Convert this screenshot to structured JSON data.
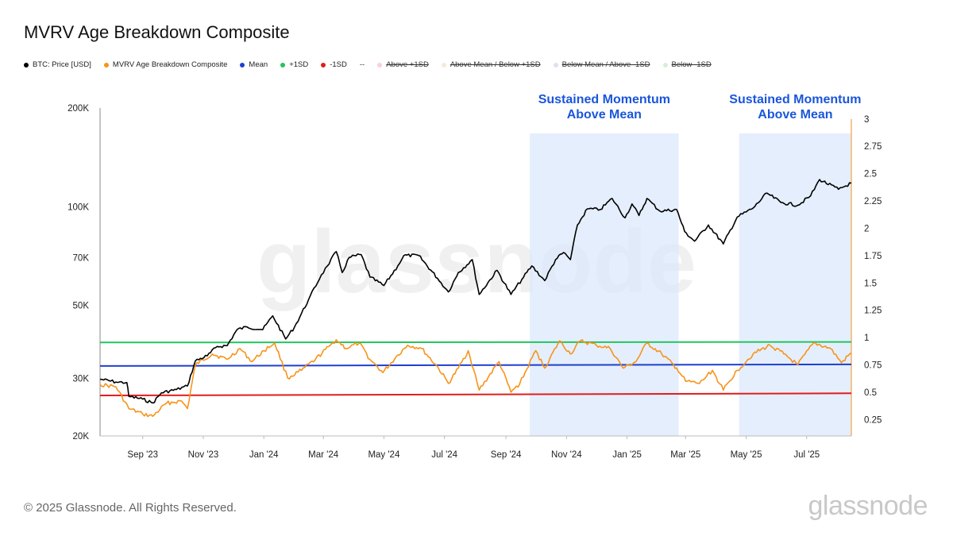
{
  "page": {
    "title": "MVRV Age Breakdown Composite",
    "footer": "© 2025 Glassnode. All Rights Reserved.",
    "brand": "glassnode",
    "watermark": "glassnode"
  },
  "legend": [
    {
      "label": "BTC: Price [USD]",
      "color": "#000000",
      "style": "dot"
    },
    {
      "label": "MVRV Age Breakdown Composite",
      "color": "#f7931a",
      "style": "dot"
    },
    {
      "label": "Mean",
      "color": "#1f3fcf",
      "style": "dot"
    },
    {
      "label": "+1SD",
      "color": "#22c55e",
      "style": "dot"
    },
    {
      "label": "-1SD",
      "color": "#e11d1d",
      "style": "dot"
    },
    {
      "label": "--",
      "color": "#333333",
      "style": "text"
    },
    {
      "label": "Above +1SD",
      "color": "#f9d0d8",
      "style": "struck"
    },
    {
      "label": "Above Mean / Below +1SD",
      "color": "#f3eadc",
      "style": "struck"
    },
    {
      "label": "Below Mean / Above -1SD",
      "color": "#dde3ec",
      "style": "struck"
    },
    {
      "label": "Below -1SD",
      "color": "#d3f0d8",
      "style": "struck"
    }
  ],
  "chart_data": {
    "type": "line",
    "x_range": [
      "2023-07-20",
      "2025-08-15"
    ],
    "x_ticks": [
      {
        "date": "2023-09-01",
        "label": "Sep '23"
      },
      {
        "date": "2023-11-01",
        "label": "Nov '23"
      },
      {
        "date": "2024-01-01",
        "label": "Jan '24"
      },
      {
        "date": "2024-03-01",
        "label": "Mar '24"
      },
      {
        "date": "2024-05-01",
        "label": "May '24"
      },
      {
        "date": "2024-07-01",
        "label": "Jul '24"
      },
      {
        "date": "2024-09-01",
        "label": "Sep '24"
      },
      {
        "date": "2024-11-01",
        "label": "Nov '24"
      },
      {
        "date": "2025-01-01",
        "label": "Jan '25"
      },
      {
        "date": "2025-03-01",
        "label": "Mar '25"
      },
      {
        "date": "2025-05-01",
        "label": "May '25"
      },
      {
        "date": "2025-07-01",
        "label": "Jul '25"
      }
    ],
    "y_left": {
      "scale": "log",
      "range": [
        20000,
        200000
      ],
      "ticks": [
        {
          "value": 20000,
          "label": "20K"
        },
        {
          "value": 30000,
          "label": "30K"
        },
        {
          "value": 50000,
          "label": "50K"
        },
        {
          "value": 70000,
          "label": "70K"
        },
        {
          "value": 100000,
          "label": "100K"
        },
        {
          "value": 200000,
          "label": "200K"
        }
      ]
    },
    "y_right": {
      "scale": "linear",
      "range": [
        0.1,
        3.1
      ],
      "ticks": [
        {
          "value": 0.25,
          "label": "0.25"
        },
        {
          "value": 0.5,
          "label": "0.5"
        },
        {
          "value": 0.75,
          "label": "0.75"
        },
        {
          "value": 1,
          "label": "1"
        },
        {
          "value": 1.25,
          "label": "1.25"
        },
        {
          "value": 1.5,
          "label": "1.5"
        },
        {
          "value": 1.75,
          "label": "1.75"
        },
        {
          "value": 2,
          "label": "2"
        },
        {
          "value": 2.25,
          "label": "2.25"
        },
        {
          "value": 2.5,
          "label": "2.5"
        },
        {
          "value": 2.75,
          "label": "2.75"
        },
        {
          "value": 3,
          "label": "3"
        }
      ]
    },
    "shaded_regions": [
      {
        "start": "2024-09-25",
        "end": "2025-02-22",
        "label_line1": "Sustained Momentum",
        "label_line2": "Above Mean",
        "color": "#dce8fb"
      },
      {
        "start": "2025-04-24",
        "end": "2025-08-15",
        "label_line1": "Sustained Momentum",
        "label_line2": "Above Mean",
        "color": "#dce8fb"
      }
    ],
    "series": [
      {
        "name": "BTC: Price [USD]",
        "axis": "left",
        "color": "#000000",
        "points": [
          [
            "2023-07-20",
            29800
          ],
          [
            "2023-08-05",
            29200
          ],
          [
            "2023-08-16",
            29100
          ],
          [
            "2023-08-18",
            26400
          ],
          [
            "2023-09-01",
            25900
          ],
          [
            "2023-09-11",
            25200
          ],
          [
            "2023-09-20",
            27100
          ],
          [
            "2023-10-05",
            27700
          ],
          [
            "2023-10-16",
            28400
          ],
          [
            "2023-10-24",
            33900
          ],
          [
            "2023-11-05",
            35100
          ],
          [
            "2023-11-15",
            37500
          ],
          [
            "2023-11-25",
            37700
          ],
          [
            "2023-12-05",
            42200
          ],
          [
            "2023-12-15",
            43000
          ],
          [
            "2023-12-31",
            42200
          ],
          [
            "2024-01-10",
            46500
          ],
          [
            "2024-01-23",
            39500
          ],
          [
            "2024-02-01",
            43000
          ],
          [
            "2024-02-15",
            52000
          ],
          [
            "2024-02-28",
            62000
          ],
          [
            "2024-03-05",
            66000
          ],
          [
            "2024-03-14",
            73000
          ],
          [
            "2024-03-20",
            63000
          ],
          [
            "2024-03-27",
            70000
          ],
          [
            "2024-04-08",
            71500
          ],
          [
            "2024-04-17",
            61000
          ],
          [
            "2024-05-01",
            57500
          ],
          [
            "2024-05-15",
            66000
          ],
          [
            "2024-05-21",
            71000
          ],
          [
            "2024-06-05",
            71000
          ],
          [
            "2024-06-24",
            60500
          ],
          [
            "2024-07-05",
            55000
          ],
          [
            "2024-07-15",
            63000
          ],
          [
            "2024-07-29",
            69000
          ],
          [
            "2024-08-05",
            54000
          ],
          [
            "2024-08-23",
            64000
          ],
          [
            "2024-09-06",
            54000
          ],
          [
            "2024-09-17",
            60000
          ],
          [
            "2024-09-27",
            66000
          ],
          [
            "2024-10-10",
            59500
          ],
          [
            "2024-10-21",
            69000
          ],
          [
            "2024-10-29",
            72500
          ],
          [
            "2024-11-05",
            69000
          ],
          [
            "2024-11-12",
            88000
          ],
          [
            "2024-11-22",
            98500
          ],
          [
            "2024-12-05",
            98000
          ],
          [
            "2024-12-17",
            106000
          ],
          [
            "2024-12-30",
            92500
          ],
          [
            "2025-01-06",
            102000
          ],
          [
            "2025-01-13",
            94000
          ],
          [
            "2025-01-21",
            106000
          ],
          [
            "2025-02-03",
            97000
          ],
          [
            "2025-02-20",
            98000
          ],
          [
            "2025-02-28",
            84000
          ],
          [
            "2025-03-10",
            78500
          ],
          [
            "2025-03-24",
            88000
          ],
          [
            "2025-04-08",
            77000
          ],
          [
            "2025-04-22",
            93000
          ],
          [
            "2025-05-08",
            99000
          ],
          [
            "2025-05-22",
            110000
          ],
          [
            "2025-06-05",
            103000
          ],
          [
            "2025-06-22",
            101000
          ],
          [
            "2025-07-05",
            108000
          ],
          [
            "2025-07-14",
            121000
          ],
          [
            "2025-08-02",
            113000
          ],
          [
            "2025-08-15",
            118000
          ]
        ]
      },
      {
        "name": "MVRV Age Breakdown Composite",
        "axis": "right",
        "color": "#f7931a",
        "points": [
          [
            "2023-07-20",
            0.57
          ],
          [
            "2023-08-05",
            0.55
          ],
          [
            "2023-08-18",
            0.35
          ],
          [
            "2023-09-01",
            0.3
          ],
          [
            "2023-09-11",
            0.28
          ],
          [
            "2023-09-25",
            0.4
          ],
          [
            "2023-10-10",
            0.42
          ],
          [
            "2023-10-16",
            0.35
          ],
          [
            "2023-10-24",
            0.75
          ],
          [
            "2023-11-10",
            0.85
          ],
          [
            "2023-11-25",
            0.8
          ],
          [
            "2023-12-08",
            0.9
          ],
          [
            "2023-12-20",
            0.78
          ],
          [
            "2024-01-01",
            0.88
          ],
          [
            "2024-01-12",
            0.95
          ],
          [
            "2024-01-25",
            0.63
          ],
          [
            "2024-02-08",
            0.7
          ],
          [
            "2024-02-22",
            0.8
          ],
          [
            "2024-03-08",
            0.93
          ],
          [
            "2024-03-14",
            0.98
          ],
          [
            "2024-03-24",
            0.9
          ],
          [
            "2024-04-06",
            0.95
          ],
          [
            "2024-04-17",
            0.8
          ],
          [
            "2024-04-30",
            0.68
          ],
          [
            "2024-05-15",
            0.84
          ],
          [
            "2024-05-25",
            0.93
          ],
          [
            "2024-06-08",
            0.9
          ],
          [
            "2024-06-25",
            0.72
          ],
          [
            "2024-07-05",
            0.58
          ],
          [
            "2024-07-15",
            0.72
          ],
          [
            "2024-07-25",
            0.88
          ],
          [
            "2024-08-05",
            0.52
          ],
          [
            "2024-08-25",
            0.78
          ],
          [
            "2024-09-06",
            0.5
          ],
          [
            "2024-09-15",
            0.58
          ],
          [
            "2024-10-01",
            0.88
          ],
          [
            "2024-10-10",
            0.72
          ],
          [
            "2024-10-25",
            0.97
          ],
          [
            "2024-11-05",
            0.85
          ],
          [
            "2024-11-15",
            0.97
          ],
          [
            "2024-12-01",
            0.93
          ],
          [
            "2024-12-15",
            0.9
          ],
          [
            "2024-12-28",
            0.72
          ],
          [
            "2025-01-10",
            0.78
          ],
          [
            "2025-01-21",
            0.95
          ],
          [
            "2025-02-05",
            0.85
          ],
          [
            "2025-02-20",
            0.72
          ],
          [
            "2025-03-01",
            0.6
          ],
          [
            "2025-03-15",
            0.58
          ],
          [
            "2025-03-28",
            0.7
          ],
          [
            "2025-04-08",
            0.52
          ],
          [
            "2025-04-22",
            0.7
          ],
          [
            "2025-05-08",
            0.85
          ],
          [
            "2025-05-25",
            0.93
          ],
          [
            "2025-06-08",
            0.85
          ],
          [
            "2025-06-22",
            0.75
          ],
          [
            "2025-07-08",
            0.95
          ],
          [
            "2025-07-25",
            0.9
          ],
          [
            "2025-08-05",
            0.77
          ],
          [
            "2025-08-15",
            0.86
          ]
        ]
      }
    ],
    "reference_lines": [
      {
        "name": "Mean",
        "axis": "right",
        "color": "#1f3fcf",
        "start_value": 0.74,
        "end_value": 0.755
      },
      {
        "name": "+1SD",
        "axis": "right",
        "color": "#22c55e",
        "start_value": 0.955,
        "end_value": 0.96
      },
      {
        "name": "-1SD",
        "axis": "right",
        "color": "#e11d1d",
        "start_value": 0.47,
        "end_value": 0.49
      }
    ]
  }
}
